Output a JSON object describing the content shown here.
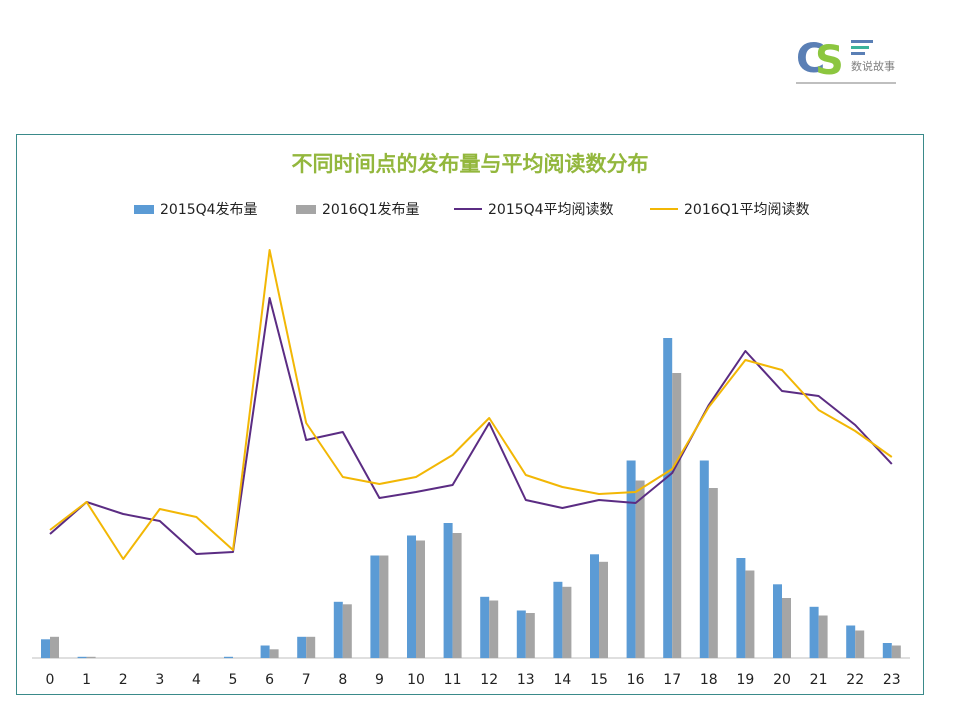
{
  "logo": {
    "letters": "CS",
    "text": "数说故事"
  },
  "colors": {
    "q4_bar": "#5b9bd5",
    "q1_bar": "#a5a5a5",
    "q4_line": "#5b2c83",
    "q1_line": "#f2b705",
    "title": "#93b73d",
    "frame": "#3a8a8a"
  },
  "chart_data": {
    "type": "bar+line",
    "title": "不同时间点的发布量与平均阅读数分布",
    "categories": [
      "0",
      "1",
      "2",
      "3",
      "4",
      "5",
      "6",
      "7",
      "8",
      "9",
      "10",
      "11",
      "12",
      "13",
      "14",
      "15",
      "16",
      "17",
      "18",
      "19",
      "20",
      "21",
      "22",
      "23"
    ],
    "bar_series": [
      {
        "name": "2015Q4发布量",
        "values": [
          15,
          1,
          0,
          0,
          0,
          1,
          10,
          17,
          45,
          82,
          98,
          108,
          49,
          38,
          61,
          83,
          158,
          256,
          158,
          80,
          59,
          41,
          26,
          12
        ]
      },
      {
        "name": "2016Q1发布量",
        "values": [
          17,
          1,
          0,
          0,
          0,
          0,
          7,
          17,
          43,
          82,
          94,
          100,
          46,
          36,
          57,
          77,
          142,
          228,
          136,
          70,
          48,
          34,
          22,
          10
        ]
      }
    ],
    "line_series": [
      {
        "name": "2015Q4平均阅读数",
        "values": [
          124,
          156,
          144,
          137,
          104,
          106,
          360,
          218,
          226,
          160,
          166,
          173,
          235,
          158,
          150,
          158,
          155,
          185,
          253,
          307,
          267,
          262,
          233,
          194
        ]
      },
      {
        "name": "2016Q1平均阅读数",
        "values": [
          128,
          156,
          99,
          149,
          141,
          108,
          408,
          235,
          181,
          174,
          181,
          203,
          240,
          183,
          171,
          164,
          166,
          189,
          251,
          298,
          288,
          248,
          227,
          201
        ]
      }
    ],
    "bar_axis_max": 400,
    "line_axis_max": 500,
    "legend_position": "top",
    "grid": false
  }
}
